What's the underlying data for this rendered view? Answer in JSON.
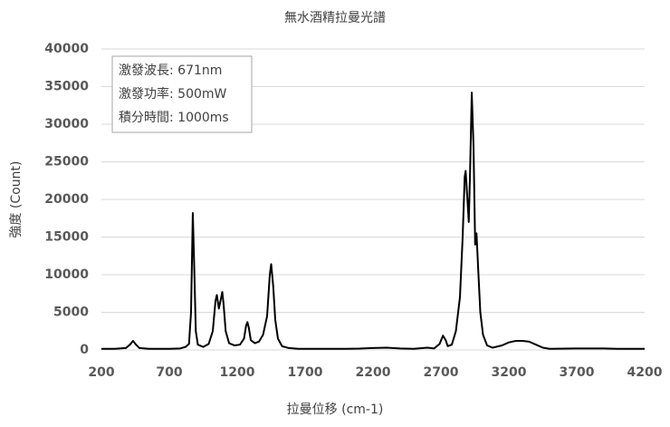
{
  "chart_data": {
    "type": "line",
    "title": "無水酒精拉曼光譜",
    "x_label": "拉曼位移 (cm-1)",
    "y_label": "強度 (Count)",
    "annotations": [
      "激發波長: 671nm",
      "激發功率: 500mW",
      "積分時間: 1000ms"
    ],
    "color": "#000000",
    "grid": true,
    "xlim": [
      200,
      4200
    ],
    "xticks": [
      200,
      700,
      1200,
      1700,
      2200,
      2700,
      3200,
      3700,
      4200
    ],
    "ylim": [
      0,
      40000
    ],
    "yticks": [
      0,
      5000,
      10000,
      15000,
      20000,
      25000,
      30000,
      35000,
      40000
    ],
    "x": [
      200,
      300,
      380,
      410,
      433,
      455,
      480,
      550,
      700,
      780,
      820,
      845,
      860,
      873,
      885,
      895,
      910,
      950,
      990,
      1020,
      1040,
      1050,
      1065,
      1080,
      1090,
      1100,
      1115,
      1140,
      1180,
      1220,
      1250,
      1265,
      1275,
      1285,
      1300,
      1330,
      1360,
      1390,
      1420,
      1440,
      1450,
      1465,
      1480,
      1500,
      1530,
      1580,
      1650,
      1800,
      2000,
      2100,
      2200,
      2300,
      2400,
      2500,
      2600,
      2650,
      2690,
      2715,
      2735,
      2750,
      2780,
      2810,
      2840,
      2860,
      2875,
      2882,
      2895,
      2905,
      2915,
      2927,
      2940,
      2952,
      2962,
      2975,
      2990,
      3010,
      3040,
      3080,
      3150,
      3200,
      3250,
      3300,
      3350,
      3400,
      3450,
      3500,
      3700,
      3900,
      4000,
      4200
    ],
    "values": [
      150,
      150,
      250,
      700,
      1200,
      700,
      250,
      150,
      150,
      200,
      400,
      800,
      5000,
      18200,
      10000,
      2500,
      700,
      400,
      800,
      2500,
      6500,
      7300,
      5500,
      6800,
      7700,
      6000,
      2500,
      900,
      600,
      700,
      1500,
      3200,
      3700,
      3000,
      1300,
      900,
      1100,
      2000,
      4500,
      10000,
      11400,
      8500,
      4000,
      1500,
      500,
      250,
      150,
      150,
      150,
      180,
      250,
      300,
      200,
      150,
      300,
      200,
      800,
      1900,
      1300,
      500,
      700,
      2500,
      7000,
      15000,
      23000,
      23800,
      20000,
      17000,
      24000,
      34200,
      27000,
      14000,
      15500,
      10500,
      5000,
      2000,
      600,
      300,
      600,
      1000,
      1200,
      1200,
      1100,
      700,
      300,
      150,
      200,
      200,
      150,
      150
    ]
  }
}
